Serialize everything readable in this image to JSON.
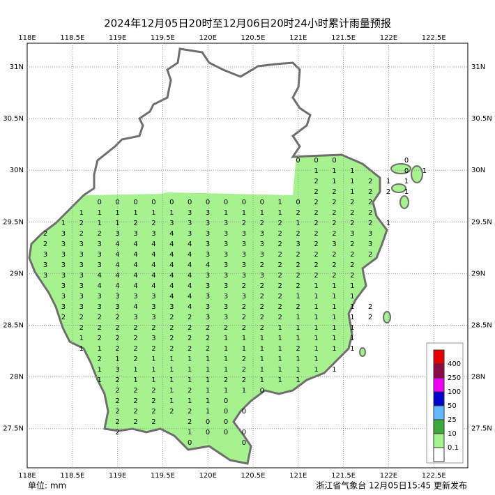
{
  "title": "2024年12月05日20时至12月06日20时24小时累计雨量预报",
  "lon_labels": [
    "118E",
    "118.5E",
    "119E",
    "119.5E",
    "120E",
    "120.5E",
    "121E",
    "121.5E",
    "122E",
    "122.5E"
  ],
  "lat_labels": [
    "31N",
    "30.5N",
    "30N",
    "29.5N",
    "29N",
    "28.5N",
    "28N",
    "27.5N"
  ],
  "legend": {
    "labels": [
      400,
      250,
      100,
      50,
      25,
      10,
      0.1
    ],
    "colors": [
      "#e60000",
      "#8c0a46",
      "#f000f0",
      "#0000cc",
      "#62b8ff",
      "#3ca83c",
      "#a6f28f",
      "#ffffff"
    ]
  },
  "footer": {
    "unit": "单位: mm",
    "source": "浙江省气象台 12月05日15:45 更新发布"
  },
  "rainfall_grid": [
    [
      null,
      null,
      null,
      null,
      null,
      null,
      null,
      null,
      null,
      null,
      null,
      null,
      null,
      null,
      0,
      0,
      0,
      null,
      null,
      null,
      0,
      null
    ],
    [
      null,
      null,
      null,
      null,
      null,
      null,
      null,
      null,
      null,
      null,
      null,
      null,
      null,
      null,
      null,
      1,
      1,
      1,
      null,
      null,
      0,
      1
    ],
    [
      null,
      null,
      null,
      null,
      null,
      null,
      null,
      null,
      null,
      null,
      null,
      null,
      null,
      null,
      null,
      2,
      1,
      1,
      2,
      1,
      1,
      null
    ],
    [
      null,
      null,
      null,
      null,
      null,
      null,
      null,
      null,
      null,
      null,
      null,
      null,
      null,
      null,
      null,
      2,
      2,
      1,
      2,
      2,
      1,
      null
    ],
    [
      null,
      null,
      null,
      0,
      0,
      0,
      0,
      0,
      0,
      0,
      0,
      0,
      0,
      1,
      0,
      2,
      2,
      2,
      2,
      null,
      null,
      null
    ],
    [
      null,
      null,
      1,
      1,
      1,
      1,
      1,
      1,
      3,
      3,
      1,
      1,
      1,
      1,
      2,
      2,
      2,
      2,
      2,
      null,
      null,
      null
    ],
    [
      null,
      1,
      2,
      1,
      1,
      2,
      2,
      3,
      3,
      3,
      3,
      2,
      2,
      2,
      1,
      2,
      2,
      2,
      2,
      1,
      null,
      null
    ],
    [
      2,
      3,
      2,
      2,
      3,
      3,
      3,
      4,
      3,
      3,
      3,
      3,
      3,
      2,
      2,
      2,
      2,
      3,
      3,
      null,
      null,
      null
    ],
    [
      2,
      3,
      3,
      3,
      4,
      4,
      4,
      4,
      4,
      3,
      3,
      3,
      3,
      2,
      3,
      2,
      3,
      2,
      3,
      null,
      null,
      null
    ],
    [
      3,
      3,
      3,
      3,
      4,
      4,
      4,
      4,
      4,
      3,
      3,
      3,
      3,
      2,
      2,
      2,
      2,
      2,
      2,
      null,
      null,
      null
    ],
    [
      3,
      3,
      3,
      3,
      4,
      4,
      4,
      4,
      4,
      4,
      3,
      3,
      2,
      2,
      2,
      2,
      2,
      2,
      null,
      null,
      null,
      null
    ],
    [
      3,
      3,
      3,
      4,
      4,
      4,
      4,
      4,
      4,
      3,
      3,
      3,
      3,
      2,
      2,
      2,
      2,
      2,
      null,
      null,
      null,
      null
    ],
    [
      null,
      3,
      3,
      4,
      4,
      4,
      4,
      4,
      4,
      3,
      3,
      2,
      2,
      2,
      2,
      1,
      1,
      1,
      null,
      null,
      null,
      null
    ],
    [
      null,
      3,
      3,
      3,
      3,
      3,
      3,
      4,
      4,
      3,
      3,
      3,
      2,
      2,
      1,
      1,
      1,
      1,
      null,
      null,
      null,
      null
    ],
    [
      null,
      3,
      3,
      3,
      3,
      4,
      3,
      3,
      4,
      3,
      3,
      2,
      2,
      2,
      2,
      1,
      1,
      1,
      2,
      null,
      null,
      null
    ],
    [
      null,
      2,
      2,
      2,
      2,
      3,
      3,
      2,
      2,
      3,
      3,
      2,
      2,
      2,
      1,
      1,
      1,
      1,
      2,
      null,
      null,
      null
    ],
    [
      null,
      null,
      2,
      2,
      2,
      2,
      2,
      2,
      2,
      2,
      2,
      2,
      2,
      1,
      1,
      1,
      1,
      1,
      null,
      null,
      null,
      null
    ],
    [
      null,
      null,
      1,
      2,
      2,
      2,
      3,
      2,
      2,
      2,
      1,
      1,
      1,
      1,
      1,
      1,
      1,
      1,
      null,
      null,
      null,
      null
    ],
    [
      null,
      null,
      1,
      1,
      2,
      2,
      2,
      2,
      2,
      2,
      1,
      1,
      1,
      1,
      2,
      1,
      1,
      1,
      null,
      null,
      null,
      null
    ],
    [
      null,
      null,
      null,
      2,
      1,
      2,
      1,
      1,
      1,
      1,
      1,
      2,
      1,
      1,
      1,
      1,
      null,
      null,
      null,
      null,
      null,
      null
    ],
    [
      null,
      null,
      null,
      1,
      3,
      1,
      1,
      1,
      1,
      1,
      1,
      2,
      1,
      1,
      1,
      1,
      1,
      null,
      null,
      null,
      null,
      null
    ],
    [
      null,
      null,
      null,
      1,
      2,
      1,
      1,
      1,
      1,
      1,
      2,
      2,
      1,
      1,
      1,
      null,
      null,
      null,
      null,
      null,
      null,
      null
    ],
    [
      null,
      null,
      null,
      null,
      2,
      2,
      2,
      1,
      2,
      1,
      1,
      1,
      0,
      null,
      null,
      null,
      null,
      null,
      null,
      null,
      null,
      null
    ],
    [
      null,
      null,
      null,
      null,
      2,
      2,
      2,
      1,
      1,
      1,
      0,
      null,
      null,
      null,
      null,
      null,
      null,
      null,
      null,
      null,
      null,
      null
    ],
    [
      null,
      null,
      null,
      null,
      2,
      2,
      2,
      2,
      2,
      1,
      0,
      0,
      null,
      null,
      null,
      null,
      null,
      null,
      null,
      null,
      null,
      null
    ],
    [
      null,
      null,
      null,
      null,
      2,
      2,
      2,
      null,
      2,
      0,
      0,
      null,
      null,
      null,
      null,
      null,
      null,
      null,
      null,
      null,
      null,
      null
    ],
    [
      null,
      null,
      null,
      null,
      2,
      null,
      null,
      null,
      1,
      0,
      0,
      0,
      null,
      null,
      null,
      null,
      null,
      null,
      null,
      null,
      null,
      null
    ],
    [
      null,
      null,
      null,
      null,
      null,
      null,
      null,
      null,
      0,
      null,
      null,
      0,
      null,
      null,
      null,
      null,
      null,
      null,
      null,
      null,
      null,
      null
    ]
  ]
}
